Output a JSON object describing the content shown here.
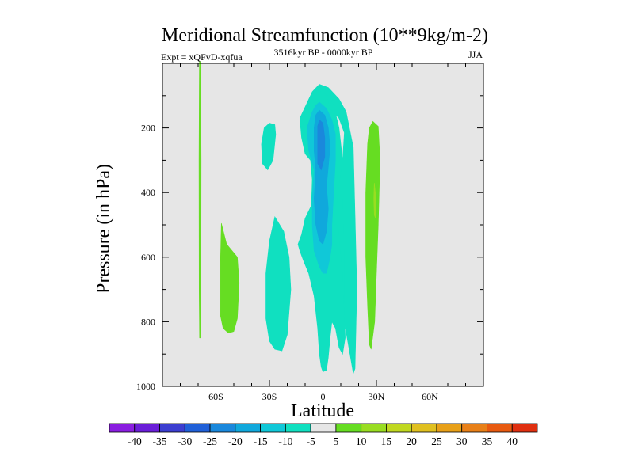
{
  "chart_data": {
    "type": "contour",
    "title": "Meridional Streamfunction (10**9kg/m-2)",
    "subtitle_left": "Expt = xQFvD-xqfua",
    "subtitle_center": "3516kyr BP - 0000kyr BP",
    "subtitle_right": "JJA",
    "xlabel": "Latitude",
    "ylabel": "Pressure (in hPa)",
    "xlim": [
      -90,
      90
    ],
    "ylim": [
      1000,
      0
    ],
    "x_ticks": [
      {
        "value": -60,
        "label": "60S"
      },
      {
        "value": -30,
        "label": "30S"
      },
      {
        "value": 0,
        "label": "0"
      },
      {
        "value": 30,
        "label": "30N"
      },
      {
        "value": 60,
        "label": "60N"
      }
    ],
    "y_ticks": [
      {
        "value": 200,
        "label": "200"
      },
      {
        "value": 400,
        "label": "400"
      },
      {
        "value": 600,
        "label": "600"
      },
      {
        "value": 800,
        "label": "800"
      },
      {
        "value": 1000,
        "label": "1000"
      }
    ],
    "background_color": "#e6e6e6",
    "contour_levels": [
      -40,
      -35,
      -30,
      -25,
      -20,
      -15,
      -10,
      -5,
      5,
      10,
      15,
      20,
      25,
      30,
      35,
      40
    ],
    "colorbar_colors": [
      "#8a1ee0",
      "#6a1ed8",
      "#3c3ed0",
      "#2060d8",
      "#1a88dc",
      "#10a8dc",
      "#10c8d8",
      "#10e0c0",
      "#e6e6e6",
      "#66dd22",
      "#99dd22",
      "#c0d820",
      "#e0c020",
      "#e8a018",
      "#e88018",
      "#e85a10",
      "#e03010"
    ],
    "regions": [
      {
        "name": "sh-high-lat-positive-strip",
        "level": 5,
        "color": "#66dd22",
        "points": [
          [
            -69.3,
            -5
          ],
          [
            -68.6,
            -5
          ],
          [
            -68.3,
            300
          ],
          [
            -68.4,
            700
          ],
          [
            -68.7,
            850
          ],
          [
            -69.2,
            850
          ],
          [
            -69.4,
            700
          ],
          [
            -69.5,
            300
          ]
        ]
      },
      {
        "name": "sh-midlat-positive-cell",
        "level": 5,
        "color": "#66dd22",
        "points": [
          [
            -57,
            495
          ],
          [
            -54,
            560
          ],
          [
            -48,
            600
          ],
          [
            -47,
            680
          ],
          [
            -48,
            790
          ],
          [
            -50,
            830
          ],
          [
            -53,
            835
          ],
          [
            -56,
            820
          ],
          [
            -57.5,
            780
          ],
          [
            -57.5,
            620
          ]
        ]
      },
      {
        "name": "sh-upper-weak-negative",
        "level": -5,
        "color": "#10e0c0",
        "points": [
          [
            -27,
            190
          ],
          [
            -26.5,
            220
          ],
          [
            -28,
            300
          ],
          [
            -31,
            330
          ],
          [
            -34,
            310
          ],
          [
            -34.5,
            250
          ],
          [
            -33,
            200
          ],
          [
            -30,
            185
          ]
        ]
      },
      {
        "name": "sh-lower-weak-negative",
        "level": -5,
        "color": "#10e0c0",
        "points": [
          [
            -27,
            475
          ],
          [
            -22,
            520
          ],
          [
            -19,
            600
          ],
          [
            -18,
            700
          ],
          [
            -20,
            840
          ],
          [
            -23,
            890
          ],
          [
            -27,
            885
          ],
          [
            -30,
            860
          ],
          [
            -32,
            790
          ],
          [
            -32,
            650
          ],
          [
            -30,
            550
          ]
        ]
      },
      {
        "name": "main-cell-outer",
        "level": -5,
        "color": "#10e0c0",
        "points": [
          [
            -1.5,
            85
          ],
          [
            2,
            100
          ],
          [
            4,
            140
          ],
          [
            9,
            170
          ],
          [
            12,
            215
          ],
          [
            11,
            300
          ],
          [
            8,
            420
          ],
          [
            9,
            540
          ],
          [
            11,
            650
          ],
          [
            12,
            800
          ],
          [
            17,
            960
          ],
          [
            18,
            945
          ],
          [
            19,
            700
          ],
          [
            18,
            470
          ],
          [
            17,
            260
          ],
          [
            13,
            150
          ],
          [
            9,
            110
          ],
          [
            3,
            75
          ],
          [
            -2,
            65
          ],
          [
            -6,
            88
          ],
          [
            -10,
            135
          ],
          [
            -13,
            170
          ],
          [
            -12,
            230
          ],
          [
            -10,
            280
          ],
          [
            -7,
            300
          ],
          [
            -6,
            360
          ],
          [
            -6.5,
            440
          ],
          [
            -10,
            480
          ],
          [
            -12,
            530
          ],
          [
            -14,
            560
          ],
          [
            -13,
            580
          ],
          [
            -11,
            610
          ],
          [
            -8,
            650
          ],
          [
            -5,
            720
          ],
          [
            -3,
            820
          ],
          [
            -2,
            900
          ],
          [
            -1,
            940
          ],
          [
            0,
            955
          ],
          [
            2,
            950
          ],
          [
            3,
            910
          ],
          [
            4,
            850
          ],
          [
            5,
            800
          ],
          [
            7,
            820
          ],
          [
            9,
            880
          ],
          [
            11,
            900
          ],
          [
            12.5,
            850
          ],
          [
            12,
            720
          ],
          [
            12,
            590
          ],
          [
            11,
            420
          ],
          [
            11,
            300
          ],
          [
            9,
            200
          ],
          [
            6,
            130
          ],
          [
            3,
            100
          ]
        ]
      },
      {
        "name": "main-cell-minus10",
        "level": -10,
        "color": "#10c8d8",
        "points": [
          [
            -2,
            120
          ],
          [
            2,
            140
          ],
          [
            5,
            175
          ],
          [
            7,
            220
          ],
          [
            7,
            300
          ],
          [
            6,
            400
          ],
          [
            5,
            500
          ],
          [
            5,
            560
          ],
          [
            4,
            600
          ],
          [
            2,
            650
          ],
          [
            0,
            650
          ],
          [
            -2,
            630
          ],
          [
            -5,
            580
          ],
          [
            -6,
            500
          ],
          [
            -6,
            420
          ],
          [
            -5,
            330
          ],
          [
            -8,
            270
          ],
          [
            -9,
            200
          ],
          [
            -6,
            150
          ],
          [
            -4,
            130
          ]
        ]
      },
      {
        "name": "main-cell-minus15",
        "level": -15,
        "color": "#10a8dc",
        "points": [
          [
            -2,
            145
          ],
          [
            1,
            160
          ],
          [
            3,
            200
          ],
          [
            4,
            260
          ],
          [
            3,
            320
          ],
          [
            2,
            380
          ],
          [
            3,
            450
          ],
          [
            2,
            520
          ],
          [
            0,
            560
          ],
          [
            -2,
            550
          ],
          [
            -4,
            500
          ],
          [
            -5,
            420
          ],
          [
            -4,
            330
          ],
          [
            -5,
            270
          ],
          [
            -5,
            200
          ],
          [
            -4,
            160
          ]
        ]
      },
      {
        "name": "main-cell-minus20",
        "level": -20,
        "color": "#1a88dc",
        "points": [
          [
            -2,
            175
          ],
          [
            0,
            185
          ],
          [
            1,
            230
          ],
          [
            1,
            290
          ],
          [
            -1,
            330
          ],
          [
            -3,
            310
          ],
          [
            -3,
            240
          ],
          [
            -3,
            195
          ]
        ]
      },
      {
        "name": "nh-subtropical-positive-cell",
        "level": 5,
        "color": "#66dd22",
        "points": [
          [
            28,
            180
          ],
          [
            31,
            195
          ],
          [
            32,
            300
          ],
          [
            31,
            500
          ],
          [
            30,
            650
          ],
          [
            29,
            800
          ],
          [
            27,
            885
          ],
          [
            26,
            870
          ],
          [
            25,
            750
          ],
          [
            24,
            600
          ],
          [
            24,
            400
          ],
          [
            25,
            250
          ],
          [
            26,
            200
          ]
        ]
      },
      {
        "name": "nh-subtropical-positive-core",
        "level": 10,
        "color": "#99dd22",
        "points": [
          [
            28.8,
            370
          ],
          [
            29.6,
            410
          ],
          [
            29.8,
            440
          ],
          [
            29.5,
            480
          ],
          [
            28.8,
            470
          ],
          [
            28.5,
            420
          ]
        ]
      }
    ],
    "colorbar_labels": [
      "-40",
      "-35",
      "-30",
      "-25",
      "-20",
      "-15",
      "-10",
      "-5",
      "5",
      "10",
      "15",
      "20",
      "25",
      "30",
      "35",
      "40"
    ]
  }
}
